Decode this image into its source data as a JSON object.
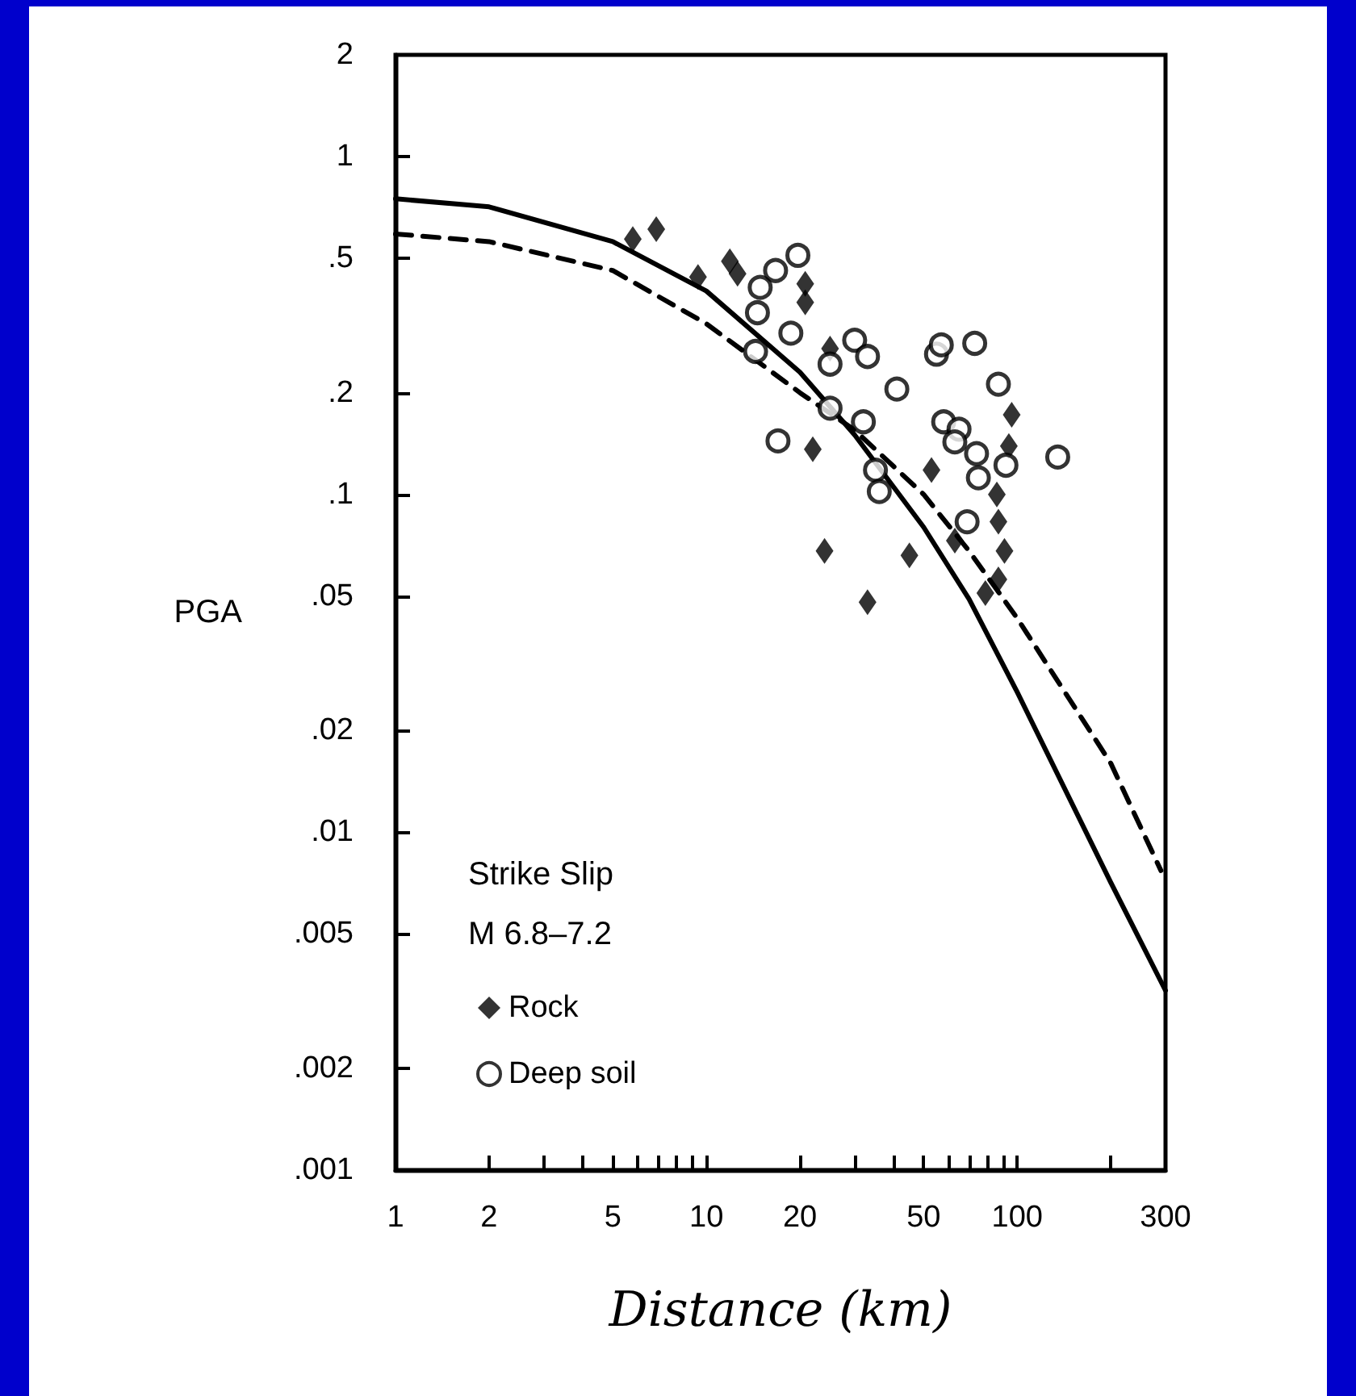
{
  "chart_data": {
    "type": "scatter",
    "xlabel": "Distance (km)",
    "ylabel": "PGA",
    "log": "xy",
    "xlim": [
      1,
      300
    ],
    "ylim": [
      0.001,
      2
    ],
    "xticks": [
      1,
      2,
      {
        "value": 3,
        "label": null
      },
      {
        "value": 4,
        "label": null
      },
      5,
      {
        "value": 6,
        "label": null
      },
      {
        "value": 7,
        "label": null
      },
      {
        "value": 8,
        "label": null
      },
      {
        "value": 9,
        "label": null
      },
      10,
      20,
      {
        "value": 30,
        "label": null
      },
      {
        "value": 40,
        "label": null
      },
      50,
      {
        "value": 60,
        "label": null
      },
      {
        "value": 70,
        "label": null
      },
      {
        "value": 80,
        "label": null
      },
      {
        "value": 90,
        "label": null
      },
      100,
      {
        "value": 200,
        "label": null
      },
      300
    ],
    "yticks": [
      {
        "value": 0.001,
        "label": ".001"
      },
      {
        "value": 0.002,
        "label": ".002"
      },
      {
        "value": 0.005,
        "label": ".005"
      },
      {
        "value": 0.01,
        "label": ".01"
      },
      {
        "value": 0.02,
        "label": ".02"
      },
      {
        "value": 0.05,
        "label": ".05"
      },
      {
        "value": 0.1,
        "label": ".1"
      },
      {
        "value": 0.2,
        "label": ".2"
      },
      {
        "value": 0.5,
        "label": ".5"
      },
      1,
      2
    ],
    "grid": false,
    "legend": "bottom left",
    "annotations": [
      "Strike Slip",
      "M 6.8–7.2"
    ],
    "series": [
      {
        "type": "line",
        "color": "#000000",
        "line_style": "solid",
        "marker": "none",
        "x": [
          1,
          2,
          5,
          10,
          20,
          30,
          50,
          70,
          100,
          200,
          300
        ],
        "values": [
          0.75,
          0.71,
          0.56,
          0.4,
          0.23,
          0.15,
          0.08,
          0.049,
          0.026,
          0.0071,
          0.0034
        ]
      },
      {
        "type": "line",
        "color": "#000000",
        "line_style": "dashed",
        "marker": "none",
        "x": [
          1,
          2,
          5,
          10,
          20,
          30,
          50,
          70,
          100,
          200,
          290
        ],
        "values": [
          0.59,
          0.56,
          0.46,
          0.32,
          0.2,
          0.155,
          0.1,
          0.068,
          0.043,
          0.016,
          0.0077
        ]
      },
      {
        "name": "Rock",
        "color": "#000000",
        "marker": "diamond",
        "x": [
          5.8,
          6.9,
          9.4,
          11.9,
          12.6,
          20.8,
          20.8,
          25,
          22,
          24,
          33,
          45,
          53,
          96,
          94,
          86,
          87,
          91,
          87,
          79,
          63
        ],
        "values": [
          0.57,
          0.61,
          0.44,
          0.49,
          0.45,
          0.42,
          0.37,
          0.27,
          0.136,
          0.068,
          0.048,
          0.066,
          0.118,
          0.172,
          0.139,
          0.1,
          0.083,
          0.068,
          0.056,
          0.051,
          0.073
        ]
      },
      {
        "name": "Deep soil",
        "color": "#000000",
        "marker": "circle",
        "x": [
          19.7,
          16.7,
          14.9,
          14.6,
          18.7,
          14.4,
          30,
          33,
          25,
          41,
          25,
          32,
          17,
          35,
          36,
          55,
          57,
          73,
          87,
          58,
          65,
          63,
          74,
          75,
          92,
          135,
          69
        ],
        "values": [
          0.51,
          0.46,
          0.41,
          0.345,
          0.3,
          0.265,
          0.286,
          0.256,
          0.243,
          0.205,
          0.18,
          0.164,
          0.144,
          0.118,
          0.102,
          0.26,
          0.277,
          0.28,
          0.212,
          0.164,
          0.156,
          0.143,
          0.132,
          0.112,
          0.122,
          0.129,
          0.083
        ]
      }
    ]
  }
}
